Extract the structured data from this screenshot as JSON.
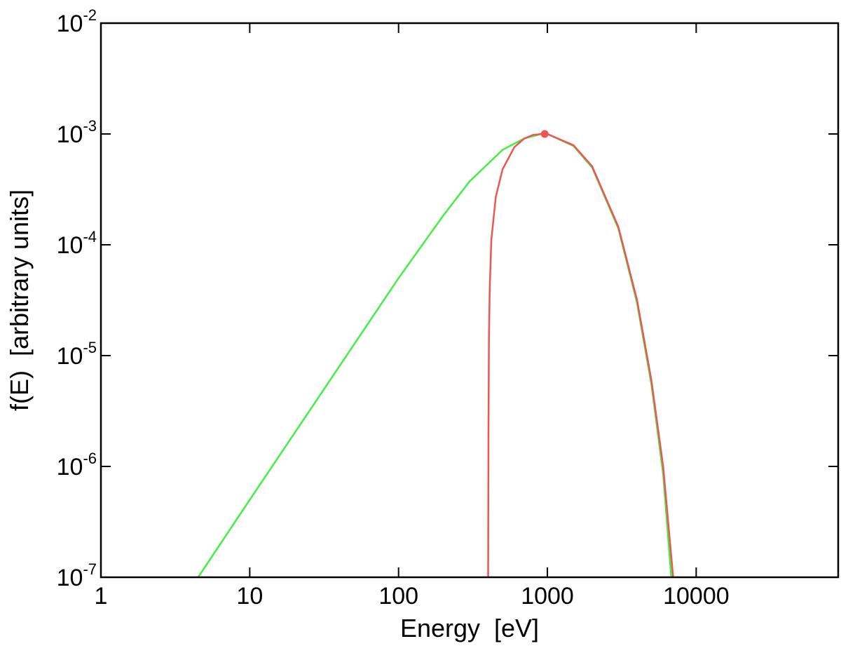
{
  "chart_data": {
    "type": "line",
    "title": "",
    "xlabel": "Energy  [eV]",
    "ylabel": "f(E)  [arbitrary units]",
    "x_scale": "log",
    "y_scale": "log",
    "xlim": [
      1,
      90000
    ],
    "ylim": [
      1e-07,
      0.01
    ],
    "x_ticks": [
      {
        "value": 1,
        "label": "1"
      },
      {
        "value": 10,
        "label": "10"
      },
      {
        "value": 100,
        "label": "100"
      },
      {
        "value": 1000,
        "label": "1000"
      },
      {
        "value": 10000,
        "label": "10000"
      }
    ],
    "y_ticks": [
      {
        "value": 1e-07,
        "base": "10",
        "exp": "-7"
      },
      {
        "value": 1e-06,
        "base": "10",
        "exp": "-6"
      },
      {
        "value": 1e-05,
        "base": "10",
        "exp": "-5"
      },
      {
        "value": 0.0001,
        "base": "10",
        "exp": "-4"
      },
      {
        "value": 0.001,
        "base": "10",
        "exp": "-3"
      },
      {
        "value": 0.01,
        "base": "10",
        "exp": "-2"
      }
    ],
    "grid": false,
    "series": [
      {
        "color": "#44ee44",
        "x": [
          4.5,
          10,
          20,
          50,
          100,
          200,
          300,
          500,
          700,
          900,
          1000,
          1500,
          2000,
          3000,
          4000,
          5000,
          6000,
          6800
        ],
        "y": [
          1e-07,
          5e-07,
          2e-06,
          1.25e-05,
          5e-05,
          0.000184,
          0.000373,
          0.000719,
          0.000911,
          0.000995,
          0.001,
          0.000778,
          0.000497,
          0.00014,
          3e-05,
          5.5e-06,
          8.5e-07,
          1e-07
        ]
      },
      {
        "color": "#ee5555",
        "x": [
          400,
          401,
          402,
          405,
          410,
          420,
          450,
          500,
          600,
          700,
          800,
          900,
          1000,
          1500,
          2000,
          3000,
          4000,
          5000,
          6000,
          7000
        ],
        "y": [
          1e-07,
          5e-07,
          2e-06,
          1.5e-05,
          4e-05,
          0.00011,
          0.00027,
          0.00048,
          0.00076,
          0.00091,
          0.00098,
          0.000998,
          0.001,
          0.00079,
          0.00051,
          0.000145,
          3.2e-05,
          6e-06,
          1e-06,
          1e-07
        ]
      }
    ],
    "markers": [
      {
        "color": "#ee5555",
        "x": 960,
        "y": 0.001
      }
    ]
  }
}
